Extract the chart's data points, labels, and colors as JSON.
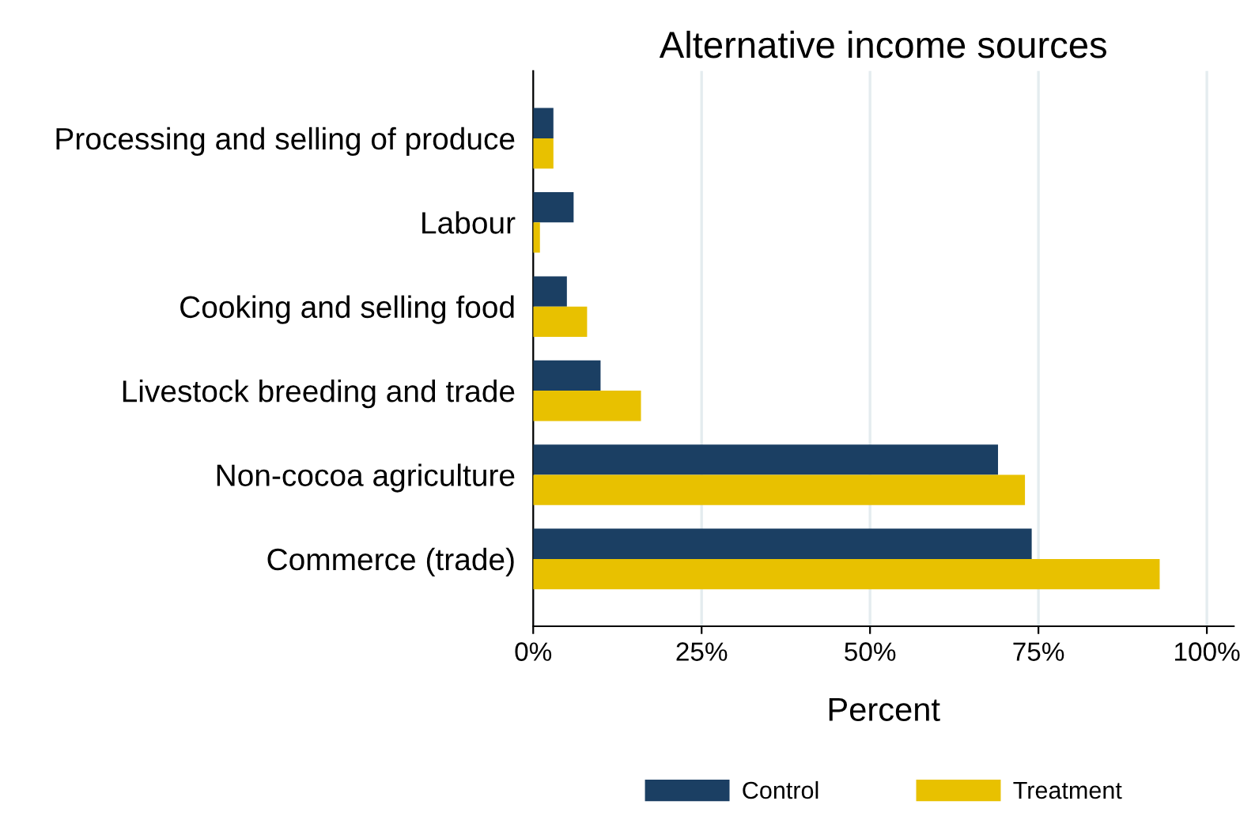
{
  "chart_data": {
    "type": "bar",
    "orientation": "horizontal",
    "title": "Alternative income sources",
    "xlabel": "Percent",
    "categories": [
      "Processing and selling of produce",
      "Labour",
      "Cooking and selling food",
      "Livestock breeding and trade",
      "Non-cocoa agriculture",
      "Commerce (trade)"
    ],
    "series": [
      {
        "name": "Control",
        "color": "#1b3f63",
        "values": [
          3,
          6,
          5,
          10,
          69,
          74
        ]
      },
      {
        "name": "Treatment",
        "color": "#e8c100",
        "values": [
          3,
          1,
          8,
          16,
          73,
          93
        ]
      }
    ],
    "xlim": [
      0,
      104
    ],
    "xticks": [
      {
        "value": 0,
        "label": "0%"
      },
      {
        "value": 25,
        "label": "25%"
      },
      {
        "value": 50,
        "label": "50%"
      },
      {
        "value": 75,
        "label": "75%"
      },
      {
        "value": 100,
        "label": "100%"
      }
    ],
    "grid": "x",
    "legend": "bottom"
  }
}
